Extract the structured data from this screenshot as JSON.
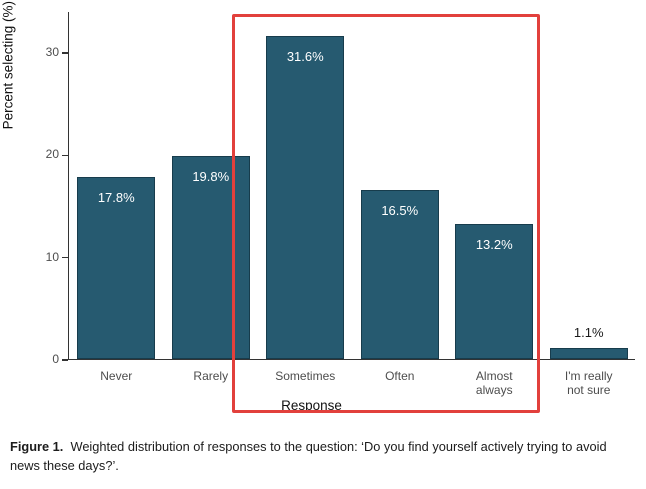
{
  "chart_data": {
    "type": "bar",
    "categories": [
      "Never",
      "Rarely",
      "Sometimes",
      "Often",
      "Almost\nalways",
      "I'm really\nnot sure"
    ],
    "values": [
      17.8,
      19.8,
      31.6,
      16.5,
      13.2,
      1.1
    ],
    "value_labels": [
      "17.8%",
      "19.8%",
      "31.6%",
      "16.5%",
      "13.2%",
      "1.1%"
    ],
    "title": "",
    "xlabel": "Response",
    "ylabel": "Percent selecting (%)",
    "ylim": [
      0,
      34
    ],
    "yticks": [
      0,
      10,
      20,
      30
    ],
    "grid": false,
    "legend": "none",
    "bar_color": "#265a70",
    "bar_border_color": "#173c4c",
    "highlight_box_color": "#e2403c",
    "highlighted_categories": [
      "Sometimes",
      "Often",
      "Almost always"
    ]
  },
  "caption": {
    "label": "Figure 1.",
    "text": "Weighted distribution of responses to the question: ‘Do you find yourself actively trying to avoid news these days?’."
  }
}
